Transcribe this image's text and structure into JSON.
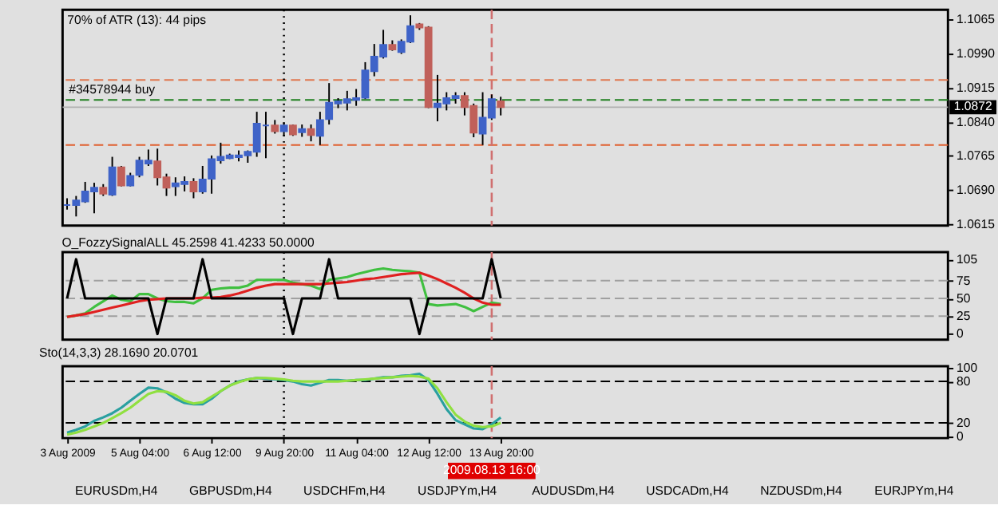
{
  "chart_data": [
    {
      "type": "candlestick",
      "annotations": [
        "70% of ATR (13): 44 pips"
      ],
      "categories": [
        "3 Aug 2009",
        null,
        null,
        null,
        null,
        null,
        null,
        null,
        "5 Aug 04:00",
        null,
        null,
        null,
        null,
        null,
        null,
        null,
        "6 Aug 12:00",
        null,
        null,
        null,
        null,
        null,
        null,
        null,
        "9 Aug 20:00",
        null,
        null,
        null,
        null,
        null,
        null,
        null,
        "11 Aug 04:00",
        null,
        null,
        null,
        null,
        null,
        null,
        null,
        "12 Aug 12:00",
        null,
        null,
        null,
        null,
        null,
        null,
        "2009.08.13 16:00",
        "13 Aug 20:00",
        null,
        null,
        null,
        null,
        null,
        null,
        null,
        null,
        null,
        null,
        null,
        null,
        null,
        null,
        null,
        null,
        null,
        null,
        null,
        null,
        null,
        null,
        null,
        null,
        null,
        null,
        null,
        null,
        null,
        null,
        null,
        null,
        null,
        null,
        null,
        null,
        null,
        null,
        null,
        null,
        null,
        null,
        null,
        null,
        null,
        null,
        null,
        null,
        null
      ],
      "ohlc": [
        [
          1.0657,
          1.0672,
          1.0647,
          1.0657
        ],
        [
          1.0657,
          1.0677,
          1.0632,
          1.0667
        ],
        [
          1.0665,
          1.0708,
          1.0662,
          1.0687
        ],
        [
          1.0687,
          1.0706,
          1.0639,
          1.0695
        ],
        [
          1.0695,
          1.0703,
          1.0677,
          1.0682
        ],
        [
          1.068,
          1.0763,
          1.0677,
          1.074
        ],
        [
          1.074,
          1.0743,
          1.0698,
          1.07
        ],
        [
          1.07,
          1.0728,
          1.0698,
          1.0721
        ],
        [
          1.0723,
          1.0763,
          1.0718,
          1.0755
        ],
        [
          1.0748,
          1.0779,
          1.0743,
          1.0755
        ],
        [
          1.0753,
          1.0781,
          1.07,
          1.0718
        ],
        [
          1.0718,
          1.0726,
          1.0677,
          1.0695
        ],
        [
          1.0698,
          1.0718,
          1.0677,
          1.0705
        ],
        [
          1.0703,
          1.072,
          1.0687,
          1.0708
        ],
        [
          1.0708,
          1.0716,
          1.0672,
          1.0687
        ],
        [
          1.0687,
          1.0743,
          1.0682,
          1.0713
        ],
        [
          1.0715,
          1.0766,
          1.0682,
          1.0758
        ],
        [
          1.0755,
          1.0794,
          1.0748,
          1.0763
        ],
        [
          1.076,
          1.077,
          1.0758,
          1.0766
        ],
        [
          1.0762,
          1.0777,
          1.0753,
          1.0766
        ],
        [
          1.0766,
          1.0777,
          1.075,
          1.0774
        ],
        [
          1.0774,
          1.0862,
          1.0763,
          1.0836
        ],
        [
          1.0832,
          1.0862,
          1.076,
          1.0832
        ],
        [
          1.0832,
          1.0844,
          1.0814,
          1.0819
        ],
        [
          1.0819,
          1.0839,
          1.0809,
          1.0832
        ],
        [
          1.0832,
          1.0834,
          1.0809,
          1.0812
        ],
        [
          1.0817,
          1.0834,
          1.0807,
          1.0824
        ],
        [
          1.0824,
          1.0834,
          1.0797,
          1.0811
        ],
        [
          1.0809,
          1.0862,
          1.0789,
          1.0844
        ],
        [
          1.0846,
          1.0925,
          1.0834,
          1.0882
        ],
        [
          1.088,
          1.0892,
          1.087,
          1.0885
        ],
        [
          1.0882,
          1.0908,
          1.0865,
          1.089
        ],
        [
          1.0888,
          1.0912,
          1.0875,
          1.0892
        ],
        [
          1.0893,
          1.0971,
          1.089,
          1.0953
        ],
        [
          1.0951,
          1.1011,
          1.094,
          1.0983
        ],
        [
          1.0983,
          1.1042,
          1.0979,
          1.1009
        ],
        [
          1.1009,
          1.1019,
          1.0996,
          1.0999
        ],
        [
          1.0993,
          1.1021,
          1.0989,
          1.1016
        ],
        [
          1.1016,
          1.1074,
          1.1013,
          1.105
        ],
        [
          1.1054,
          1.1057,
          1.1042,
          1.1047
        ],
        [
          1.1047,
          1.105,
          1.087,
          1.0872
        ],
        [
          1.0872,
          1.0943,
          1.0841,
          1.088
        ],
        [
          1.088,
          1.0905,
          1.0865,
          1.0892
        ],
        [
          1.0892,
          1.0905,
          1.088,
          1.0897
        ],
        [
          1.0897,
          1.0905,
          1.0854,
          1.0872
        ],
        [
          1.0875,
          1.088,
          1.0806,
          1.0816
        ],
        [
          1.0814,
          1.0905,
          1.0789,
          1.0849
        ],
        [
          1.0849,
          1.09,
          1.0844,
          1.089
        ],
        [
          1.0885,
          1.0895,
          1.0854,
          1.0872
        ],
        null,
        null,
        null,
        null,
        null,
        null,
        null,
        null,
        null,
        null,
        null,
        null,
        null,
        null,
        null,
        null,
        null,
        null,
        null,
        null,
        null,
        null,
        null,
        null,
        null,
        null,
        null,
        null,
        null,
        null,
        null,
        null,
        null,
        null,
        null,
        null,
        null,
        null,
        null,
        null,
        null,
        null,
        null,
        null,
        null,
        null,
        null,
        null,
        null
      ],
      "colors": [
        "#3f63c8",
        "#3f63c8",
        "#3f63c8",
        "#3f63c8",
        "#c0605a",
        "#3f63c8",
        "#c0605a",
        "#3f63c8",
        "#3f63c8",
        "#3f63c8",
        "#c0605a",
        "#c0605a",
        "#3f63c8",
        "#3f63c8",
        "#c0605a",
        "#3f63c8",
        "#3f63c8",
        "#3f63c8",
        "#3f63c8",
        "#3f63c8",
        "#3f63c8",
        "#3f63c8",
        "#3f63c8",
        "#c0605a",
        "#3f63c8",
        "#c0605a",
        "#3f63c8",
        "#c0605a",
        "#3f63c8",
        "#3f63c8",
        "#3f63c8",
        "#3f63c8",
        "#3f63c8",
        "#3f63c8",
        "#3f63c8",
        "#3f63c8",
        "#c0605a",
        "#3f63c8",
        "#3f63c8",
        "#c0605a",
        "#c0605a",
        "#3f63c8",
        "#3f63c8",
        "#3f63c8",
        "#c0605a",
        "#c0605a",
        "#3f63c8",
        "#3f63c8",
        "#c0605a",
        null,
        null,
        null,
        null,
        null,
        null,
        null,
        null,
        null,
        null,
        null,
        null,
        null,
        null,
        null,
        null,
        null,
        null,
        null,
        null,
        null,
        null,
        null,
        null,
        null,
        null,
        null,
        null,
        null,
        null,
        null,
        null,
        null,
        null,
        null,
        null,
        null,
        null,
        null,
        null,
        null,
        null,
        null,
        null,
        null,
        null,
        null,
        null,
        null
      ],
      "ylim": [
        1.0612,
        1.1086
      ],
      "yticks": [
        1.1065,
        {
          "value": 1.099,
          "label": "1.0990"
        },
        1.0915,
        {
          "value": 1.084,
          "label": "1.0840"
        },
        1.0765,
        {
          "value": 1.069,
          "label": "1.0690"
        },
        1.0615
      ],
      "tick_labels": "y",
      "ref_lines": [
        {
          "axis": "y",
          "value": 1.0932,
          "color": "#e07850",
          "line_style": "dashed"
        },
        {
          "axis": "y",
          "value": 1.0888,
          "label": "#34578944 buy",
          "color": "#208020",
          "line_style": "dashed"
        },
        {
          "axis": "y",
          "value": 1.0789,
          "color": "#e06030",
          "line_style": "dashed"
        },
        {
          "axis": "y",
          "value": 1.0872,
          "label": "1.0872",
          "color": "#b0b0b0",
          "line_style": "solid"
        },
        {
          "axis": "x",
          "value": "9 Aug 20:00",
          "color": "#000000",
          "line_style": "dotted"
        },
        {
          "axis": "x",
          "value": "2009.08.13 16:00",
          "color": "#d07070",
          "line_style": "dashed"
        }
      ]
    },
    {
      "type": "line",
      "title": "O_FozzySignalALL 45.2598 41.4233 50.0000",
      "categories": [
        "3 Aug 2009",
        null,
        null,
        null,
        null,
        null,
        null,
        null,
        "5 Aug 04:00",
        null,
        null,
        null,
        null,
        null,
        null,
        null,
        "6 Aug 12:00",
        null,
        null,
        null,
        null,
        null,
        null,
        null,
        "9 Aug 20:00",
        null,
        null,
        null,
        null,
        null,
        null,
        null,
        "11 Aug 04:00",
        null,
        null,
        null,
        null,
        null,
        null,
        null,
        "12 Aug 12:00",
        null,
        null,
        null,
        null,
        null,
        null,
        "2009.08.13 16:00",
        "13 Aug 20:00",
        null,
        null,
        null,
        null,
        null,
        null,
        null,
        null,
        null,
        null,
        null,
        null,
        null,
        null,
        null,
        null,
        null,
        null,
        null,
        null,
        null,
        null,
        null,
        null,
        null,
        null,
        null,
        null,
        null,
        null,
        null,
        null,
        null,
        null,
        null,
        null,
        null,
        null,
        null,
        null,
        null,
        null,
        null,
        null,
        null,
        null,
        null,
        null,
        null
      ],
      "series": [
        {
          "color": "#40c040",
          "values": [
            24,
            26,
            29,
            38,
            46,
            54,
            48,
            46,
            56,
            56,
            50,
            46,
            45,
            45,
            43,
            50,
            62,
            64,
            65,
            65,
            68,
            76,
            76,
            76,
            76,
            72,
            70,
            68,
            63,
            76,
            78,
            80,
            84,
            87,
            90,
            92,
            90,
            89,
            88,
            86,
            42,
            40,
            41,
            42,
            38,
            32,
            38,
            44,
            42,
            null,
            null,
            null,
            null,
            null,
            null,
            null,
            null,
            null,
            null,
            null,
            null,
            null,
            null,
            null,
            null,
            null,
            null,
            null,
            null,
            null,
            null,
            null,
            null,
            null,
            null,
            null,
            null,
            null,
            null,
            null,
            null,
            null,
            null,
            null,
            null,
            null,
            null,
            null,
            null,
            null,
            null,
            null,
            null,
            null,
            null,
            null,
            null,
            null
          ]
        },
        {
          "color": "#e02020",
          "values": [
            24,
            26,
            28,
            31,
            34,
            37,
            40,
            43,
            46,
            48,
            49,
            50,
            50,
            50,
            50,
            51,
            51,
            52,
            54,
            57,
            61,
            65,
            68,
            70,
            70,
            70,
            70,
            70,
            70,
            71,
            72,
            73,
            75,
            77,
            78,
            80,
            82,
            84,
            85,
            86,
            82,
            77,
            71,
            65,
            58,
            50,
            44,
            41,
            41,
            null,
            null,
            null,
            null,
            null,
            null,
            null,
            null,
            null,
            null,
            null,
            null,
            null,
            null,
            null,
            null,
            null,
            null,
            null,
            null,
            null,
            null,
            null,
            null,
            null,
            null,
            null,
            null,
            null,
            null,
            null,
            null,
            null,
            null,
            null,
            null,
            null,
            null,
            null,
            null,
            null,
            null,
            null,
            null,
            null,
            null,
            null,
            null,
            null
          ]
        },
        {
          "color": "#000000",
          "values": [
            50,
            105,
            50,
            50,
            50,
            50,
            50,
            50,
            50,
            50,
            0,
            50,
            50,
            50,
            50,
            105,
            50,
            50,
            50,
            50,
            50,
            50,
            50,
            50,
            50,
            0,
            50,
            50,
            50,
            105,
            50,
            50,
            50,
            50,
            50,
            50,
            50,
            50,
            50,
            0,
            50,
            50,
            50,
            50,
            50,
            50,
            50,
            105,
            50,
            null,
            null,
            null,
            null,
            null,
            null,
            null,
            null,
            null,
            null,
            null,
            null,
            null,
            null,
            null,
            null,
            null,
            null,
            null,
            null,
            null,
            null,
            null,
            null,
            null,
            null,
            null,
            null,
            null,
            null,
            null,
            null,
            null,
            null,
            null,
            null,
            null,
            null,
            null,
            null,
            null,
            null,
            null,
            null,
            null,
            null,
            null,
            null,
            null
          ]
        }
      ],
      "ylim": [
        -8,
        115
      ],
      "yticks": [
        105,
        75,
        50,
        25,
        0
      ],
      "tick_labels": "y",
      "ref_lines": [
        {
          "axis": "y",
          "value": 75,
          "color": "#a0a0a0",
          "line_style": "dashed"
        },
        {
          "axis": "y",
          "value": 50,
          "color": "#a0a0a0",
          "line_style": "dashed"
        },
        {
          "axis": "y",
          "value": 25,
          "color": "#a0a0a0",
          "line_style": "dashed"
        },
        {
          "axis": "x",
          "value": "9 Aug 20:00",
          "color": "#000000",
          "line_style": "dotted"
        },
        {
          "axis": "x",
          "value": "2009.08.13 16:00",
          "color": "#d07070",
          "line_style": "dashed"
        }
      ]
    },
    {
      "type": "line",
      "title": "Sto(14,3,3) 28.1690 20.0701",
      "categories": [
        "3 Aug 2009",
        null,
        null,
        null,
        null,
        null,
        null,
        null,
        "5 Aug 04:00",
        null,
        null,
        null,
        null,
        null,
        null,
        null,
        "6 Aug 12:00",
        null,
        null,
        null,
        null,
        null,
        null,
        null,
        "9 Aug 20:00",
        null,
        null,
        null,
        null,
        null,
        null,
        null,
        "11 Aug 04:00",
        null,
        null,
        null,
        null,
        null,
        null,
        null,
        "12 Aug 12:00",
        null,
        null,
        null,
        null,
        null,
        null,
        "2009.08.13 16:00",
        "13 Aug 20:00",
        null,
        null,
        null,
        null,
        null,
        null,
        null,
        null,
        null,
        null,
        null,
        null,
        null,
        null,
        null,
        null,
        null,
        null,
        null,
        null,
        null,
        null,
        null,
        null,
        null,
        null,
        null,
        null,
        null,
        null,
        null,
        null,
        null,
        null,
        null,
        null,
        null,
        null,
        null,
        null,
        null,
        null,
        null,
        null,
        null,
        null,
        null,
        null,
        null
      ],
      "series": [
        {
          "color": "#2aa0a0",
          "values": [
            6,
            10,
            15,
            23,
            28,
            34,
            42,
            52,
            62,
            71,
            70,
            64,
            55,
            49,
            47,
            47,
            55,
            66,
            74,
            80,
            83,
            85,
            84,
            83,
            82,
            80,
            76,
            74,
            78,
            82,
            82,
            81,
            82,
            82,
            84,
            86,
            86,
            88,
            89,
            91,
            82,
            62,
            40,
            24,
            18,
            12,
            11,
            18,
            28,
            null,
            null,
            null,
            null,
            null,
            null,
            null,
            null,
            null,
            null,
            null,
            null,
            null,
            null,
            null,
            null,
            null,
            null,
            null,
            null,
            null,
            null,
            null,
            null,
            null,
            null,
            null,
            null,
            null,
            null,
            null,
            null,
            null,
            null,
            null,
            null,
            null,
            null,
            null,
            null,
            null,
            null,
            null,
            null,
            null,
            null,
            null,
            null,
            null
          ]
        },
        {
          "color": "#90e040",
          "values": [
            3,
            6,
            10,
            15,
            20,
            27,
            34,
            42,
            52,
            62,
            66,
            65,
            60,
            52,
            48,
            50,
            58,
            66,
            74,
            79,
            83,
            85,
            85,
            84,
            83,
            81,
            80,
            80,
            80,
            80,
            80,
            81,
            82,
            83,
            84,
            85,
            86,
            87,
            88,
            87,
            84,
            70,
            50,
            32,
            22,
            16,
            14,
            15,
            20,
            null,
            null,
            null,
            null,
            null,
            null,
            null,
            null,
            null,
            null,
            null,
            null,
            null,
            null,
            null,
            null,
            null,
            null,
            null,
            null,
            null,
            null,
            null,
            null,
            null,
            null,
            null,
            null,
            null,
            null,
            null,
            null,
            null,
            null,
            null,
            null,
            null,
            null,
            null,
            null,
            null,
            null,
            null,
            null,
            null,
            null,
            null,
            null,
            null
          ]
        }
      ],
      "ylim": [
        -2,
        102
      ],
      "yticks": [
        100,
        80,
        20,
        0
      ],
      "ref_lines": [
        {
          "axis": "y",
          "value": 80,
          "color": "#000000",
          "line_style": "dashed"
        },
        {
          "axis": "y",
          "value": 20,
          "color": "#000000",
          "line_style": "dashed"
        },
        {
          "axis": "x",
          "value": "9 Aug 20:00",
          "color": "#000000",
          "line_style": "dotted"
        },
        {
          "axis": "x",
          "value": "2009.08.13 16:00",
          "color": "#d07070",
          "line_style": "dashed"
        }
      ],
      "annotations": [
        "EURUSDm,H4",
        "GBPUSDm,H4",
        "USDCHFm,H4",
        "USDJPYm,H4",
        "AUDUSDm,H4",
        "USDCADm,H4",
        "NZDUSDm,H4",
        "EURJPYm,H4"
      ]
    }
  ]
}
